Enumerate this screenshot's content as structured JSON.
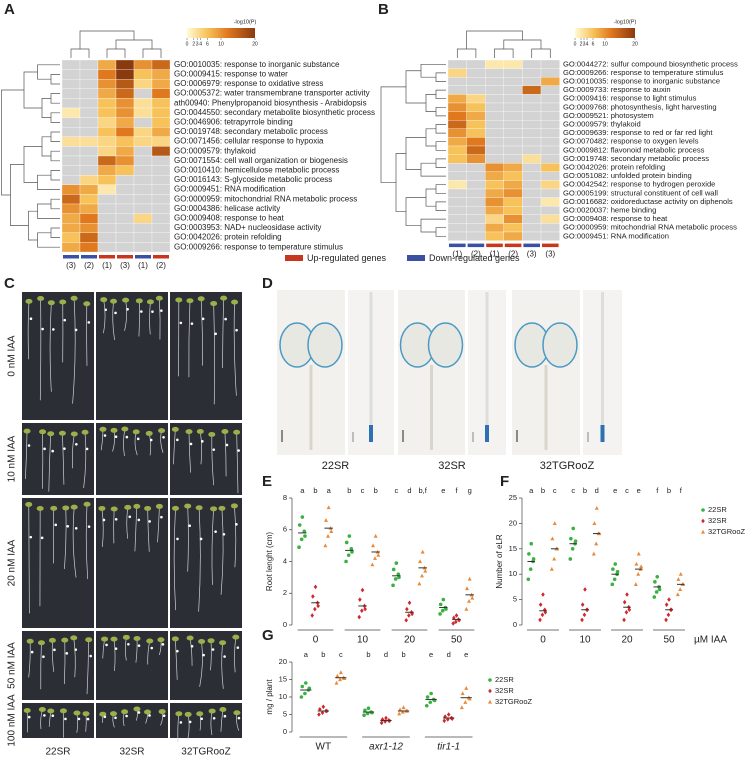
{
  "panels": {
    "A": {
      "letter": "A",
      "heatmap": {
        "colorbar_label": "-log10(P)",
        "colorbar_lim": [
          0,
          20
        ],
        "colorbar_ticks": [
          0,
          2,
          3,
          4,
          6,
          10,
          20
        ],
        "rows": [
          "GO:0010035: response to inorganic substance",
          "GO:0009415: response to water",
          "GO:0006979: response to oxidative stress",
          "GO:0005372: water transmembrane transporter activity",
          "ath00940: Phenylpropanoid biosynthesis - Arabidopsis",
          "GO:0044550: secondary metabolite biosynthetic process",
          "GO:0046906: tetrapyrrole binding",
          "GO:0019748: secondary metabolic process",
          "GO:0071456: cellular response to hypoxia",
          "GO:0009579: thylakoid",
          "GO:0071554: cell wall organization or biogenesis",
          "GO:0010410: hemicellulose metabolic process",
          "GO:0016143: S-glycoside metabolic process",
          "GO:0009451: RNA modification",
          "GO:0000959: mitochondrial RNA metabolic process",
          "GO:0004386: helicase activity",
          "GO:0009408: response to heat",
          "GO:0003953: NAD+ nucleosidase activity",
          "GO:0042026: protein refolding",
          "GO:0009266: response to temperature stimulus"
        ],
        "values": [
          [
            null,
            null,
            8,
            20,
            10,
            14
          ],
          [
            null,
            null,
            12,
            20,
            6,
            8
          ],
          [
            null,
            null,
            10,
            16,
            4,
            8
          ],
          [
            null,
            null,
            8,
            14,
            null,
            12
          ],
          [
            null,
            null,
            6,
            10,
            3,
            6
          ],
          [
            2,
            null,
            6,
            10,
            3,
            6
          ],
          [
            null,
            null,
            4,
            8,
            null,
            6
          ],
          [
            null,
            null,
            6,
            12,
            4,
            8
          ],
          [
            3,
            3,
            4,
            6,
            4,
            4
          ],
          [
            null,
            null,
            4,
            8,
            null,
            16
          ],
          [
            null,
            null,
            14,
            10,
            null,
            null
          ],
          [
            null,
            null,
            8,
            6,
            null,
            null
          ],
          [
            null,
            4,
            6,
            null,
            null,
            null
          ],
          [
            10,
            8,
            2,
            null,
            null,
            null
          ],
          [
            14,
            6,
            null,
            null,
            null,
            null
          ],
          [
            10,
            8,
            null,
            null,
            null,
            null
          ],
          [
            8,
            12,
            null,
            null,
            4,
            null
          ],
          [
            8,
            10,
            null,
            null,
            null,
            null
          ],
          [
            6,
            14,
            null,
            null,
            null,
            null
          ],
          [
            8,
            12,
            null,
            null,
            null,
            null
          ]
        ],
        "columns": [
          {
            "label": "(3)",
            "color": "#3a50a3"
          },
          {
            "label": "(2)",
            "color": "#3a50a3"
          },
          {
            "label": "(1)",
            "color": "#c8371d"
          },
          {
            "label": "(3)",
            "color": "#c8371d"
          },
          {
            "label": "(1)",
            "color": "#3a50a3"
          },
          {
            "label": "(2)",
            "color": "#c8371d"
          }
        ]
      }
    },
    "B": {
      "letter": "B",
      "heatmap": {
        "colorbar_label": "-log10(P)",
        "colorbar_lim": [
          0,
          20
        ],
        "colorbar_ticks": [
          0,
          2,
          3,
          4,
          6,
          10,
          20
        ],
        "rows": [
          "GO:0044272: sulfur compound biosynthetic process",
          "GO:0009266: response to temperature stimulus",
          "GO:0010035: response to inorganic substance",
          "GO:0009733: response to auxin",
          "GO:0009416: response to light stimulus",
          "GO:0009768: photosynthesis, light harvesting",
          "GO:0009521: photosystem",
          "GO:0009579: thylakoid",
          "GO:0009639: response to red or far red light",
          "GO:0070482: response to oxygen levels",
          "GO:0009812: flavonoid metabolic process",
          "GO:0019748: secondary metabolic process",
          "GO:0042026: protein refolding",
          "GO:0051082: unfolded protein binding",
          "GO:0042542: response to hydrogen peroxide",
          "GO:0005199: structural constituent of cell wall",
          "GO:0016682: oxidoreductase activity on diphenols",
          "GO:0020037: heme binding",
          "GO:0009408: response to heat",
          "GO:0000959: mitochondrial RNA metabolic process",
          "GO:0009451: RNA modification"
        ],
        "values": [
          [
            null,
            null,
            2,
            2,
            null,
            null
          ],
          [
            4,
            null,
            null,
            null,
            null,
            null
          ],
          [
            null,
            null,
            null,
            null,
            null,
            8
          ],
          [
            null,
            null,
            null,
            null,
            14,
            null
          ],
          [
            8,
            4,
            null,
            null,
            null,
            null
          ],
          [
            10,
            6,
            null,
            null,
            null,
            null
          ],
          [
            12,
            8,
            null,
            null,
            null,
            null
          ],
          [
            14,
            6,
            null,
            null,
            null,
            null
          ],
          [
            10,
            6,
            null,
            null,
            null,
            null
          ],
          [
            8,
            12,
            null,
            null,
            null,
            null
          ],
          [
            6,
            14,
            null,
            null,
            null,
            null
          ],
          [
            6,
            10,
            null,
            null,
            3,
            null
          ],
          [
            null,
            null,
            10,
            8,
            null,
            6
          ],
          [
            null,
            null,
            8,
            6,
            null,
            null
          ],
          [
            2,
            null,
            6,
            8,
            null,
            4
          ],
          [
            null,
            null,
            8,
            10,
            null,
            null
          ],
          [
            null,
            null,
            10,
            6,
            null,
            2
          ],
          [
            null,
            null,
            8,
            6,
            null,
            null
          ],
          [
            null,
            null,
            4,
            10,
            null,
            3
          ],
          [
            null,
            null,
            8,
            6,
            null,
            null
          ],
          [
            null,
            null,
            6,
            8,
            null,
            null
          ]
        ],
        "columns": [
          {
            "label": "(1)",
            "color": "#3a50a3"
          },
          {
            "label": "(2)",
            "color": "#3a50a3"
          },
          {
            "label": "(1)",
            "color": "#c8371d"
          },
          {
            "label": "(2)",
            "color": "#c8371d"
          },
          {
            "label": "(3)",
            "color": "#3a50a3"
          },
          {
            "label": "(3)",
            "color": "#c8371d"
          }
        ]
      }
    },
    "C": {
      "letter": "C",
      "rows": [
        "0 nM IAA",
        "10 nM IAA",
        "20 nM IAA",
        "50 nM IAA",
        "100 nM IAA"
      ],
      "columns": [
        "22SR",
        "32SR",
        "32TGRooZ"
      ]
    },
    "D": {
      "letter": "D",
      "labels": [
        "22SR",
        "32SR",
        "32TGRooZ"
      ]
    },
    "E": {
      "letter": "E",
      "ylabel": "Root lenght (cm)",
      "ylim": [
        0,
        8
      ],
      "yticks": [
        0,
        2,
        4,
        6,
        8
      ],
      "categories": [
        "0",
        "10",
        "20",
        "50"
      ],
      "letters": [
        "a",
        "b",
        "a",
        "b",
        "c",
        "b",
        "c",
        "d",
        "b,f",
        "e",
        "f",
        "g"
      ],
      "series": [
        {
          "color": "#3cb043",
          "marker": "circle",
          "means": [
            5.8,
            4.7,
            3.1,
            1.1
          ],
          "points": [
            [
              4.9,
              5.4,
              5.9,
              6.3,
              6.8,
              5.6
            ],
            [
              4.0,
              4.4,
              4.8,
              5.2,
              5.6,
              4.6
            ],
            [
              2.5,
              2.9,
              3.2,
              3.5,
              3.9,
              3.0
            ],
            [
              0.7,
              0.9,
              1.1,
              1.3,
              1.6,
              1.0
            ]
          ]
        },
        {
          "color": "#d0282c",
          "marker": "diamond",
          "means": [
            1.4,
            1.2,
            0.8,
            0.35
          ],
          "points": [
            [
              0.6,
              1.0,
              1.4,
              1.8,
              2.4,
              1.2
            ],
            [
              0.5,
              0.9,
              1.2,
              1.6,
              2.2,
              1.0
            ],
            [
              0.3,
              0.6,
              0.8,
              1.0,
              1.4,
              0.7
            ],
            [
              0.1,
              0.2,
              0.35,
              0.45,
              0.6,
              0.3
            ]
          ]
        },
        {
          "color": "#e88a3c",
          "marker": "triangle",
          "means": [
            6.1,
            4.6,
            3.6,
            1.9
          ],
          "points": [
            [
              5.0,
              5.6,
              6.1,
              6.6,
              7.4,
              5.9
            ],
            [
              3.8,
              4.2,
              4.6,
              5.0,
              5.6,
              4.4
            ],
            [
              2.6,
              3.1,
              3.6,
              4.0,
              4.6,
              3.4
            ],
            [
              1.0,
              1.5,
              1.9,
              2.3,
              2.9,
              1.7
            ]
          ]
        }
      ]
    },
    "F": {
      "letter": "F",
      "ylabel": "Number of eLR",
      "xlabel": "µM IAA",
      "ylim": [
        0,
        25
      ],
      "yticks": [
        0,
        5,
        10,
        15,
        20,
        25
      ],
      "categories": [
        "0",
        "10",
        "20",
        "50"
      ],
      "letters": [
        "a",
        "b",
        "c",
        "c",
        "b",
        "d",
        "e",
        "c",
        "e",
        "f",
        "b",
        "f"
      ],
      "series": [
        {
          "name": "22SR",
          "color": "#3cb043",
          "marker": "circle",
          "means": [
            12.5,
            16,
            10,
            7.5
          ],
          "points": [
            [
              9,
              11,
              12.5,
              14,
              16,
              13
            ],
            [
              13,
              15,
              16,
              17,
              19,
              16.5
            ],
            [
              8,
              9,
              10,
              11,
              12,
              10.5
            ],
            [
              5.5,
              6.5,
              7.5,
              8.5,
              9.5,
              7
            ]
          ]
        },
        {
          "name": "32SR",
          "color": "#d0282c",
          "marker": "diamond",
          "means": [
            2.8,
            3,
            3.5,
            3
          ],
          "points": [
            [
              1,
              2,
              3,
              4,
              6,
              2.5
            ],
            [
              1,
              2,
              3,
              4,
              7,
              3
            ],
            [
              1,
              2.5,
              3.5,
              4.5,
              6,
              3
            ],
            [
              1,
              2,
              3,
              4,
              5,
              3
            ]
          ]
        },
        {
          "name": "32TGRooZ",
          "color": "#e88a3c",
          "marker": "triangle",
          "means": [
            15,
            18,
            11,
            8
          ],
          "points": [
            [
              11,
              13,
              15,
              17,
              20,
              15
            ],
            [
              14,
              16,
              18,
              20,
              23,
              18
            ],
            [
              8,
              10,
              11,
              12,
              14,
              11.5
            ],
            [
              6,
              7,
              8,
              9,
              10,
              8
            ]
          ]
        }
      ]
    },
    "G": {
      "letter": "G",
      "ylabel": "mg / plant",
      "ylim": [
        0,
        20
      ],
      "yticks": [
        0,
        5,
        10,
        15,
        20
      ],
      "categories": [
        "WT",
        "axr1-12",
        "tir1-1"
      ],
      "letters": [
        "a",
        "b",
        "c",
        "b",
        "d",
        "b",
        "e",
        "d",
        "e"
      ],
      "series": [
        {
          "name": "22SR",
          "color": "#3cb043",
          "marker": "circle",
          "means": [
            12,
            5.7,
            9.3
          ],
          "points": [
            [
              10,
              11,
              12,
              13,
              14,
              12.5
            ],
            [
              4.8,
              5.3,
              5.7,
              6.2,
              6.8,
              5.5
            ],
            [
              7.5,
              8.5,
              9.3,
              10,
              11,
              9
            ]
          ]
        },
        {
          "name": "32SR",
          "color": "#d0282c",
          "marker": "diamond",
          "means": [
            6,
            3.3,
            4
          ],
          "points": [
            [
              5,
              5.5,
              6,
              6.5,
              7.2,
              6
            ],
            [
              2.6,
              3,
              3.3,
              3.6,
              4,
              3.2
            ],
            [
              3.2,
              3.6,
              4,
              4.4,
              5,
              3.8
            ]
          ]
        },
        {
          "name": "32TGRooZ",
          "color": "#e88a3c",
          "marker": "triangle",
          "means": [
            15.5,
            6,
            9.8
          ],
          "points": [
            [
              14,
              15,
              15.5,
              16,
              17,
              15.3
            ],
            [
              5.2,
              5.7,
              6,
              6.4,
              7,
              6
            ],
            [
              7,
              8.5,
              9.8,
              11,
              12.5,
              9.5
            ]
          ]
        }
      ]
    }
  },
  "legend": [
    {
      "label": "Up-regulated genes",
      "color": "#c8371d"
    },
    {
      "label": "Down-regulated genes",
      "color": "#3a50a3"
    }
  ]
}
